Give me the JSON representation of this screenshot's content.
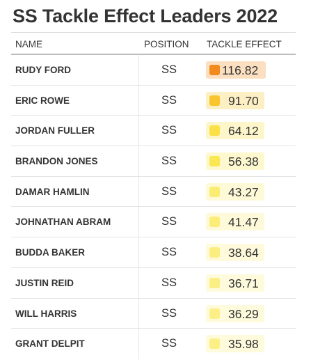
{
  "title": "SS Tackle Effect Leaders 2022",
  "headers": {
    "name": "NAME",
    "position": "POSITION",
    "tackle_effect": "TACKLE EFFECT"
  },
  "colors": {
    "scale_high": "#f28b1e",
    "scale_mid": "#f9c02a",
    "scale_low": "#fbe44a",
    "scale_min": "#fbef86"
  },
  "rows": [
    {
      "name": "RUDY FORD",
      "position": "SS",
      "tackle_effect": "116.82"
    },
    {
      "name": "ERIC ROWE",
      "position": "SS",
      "tackle_effect": "91.70"
    },
    {
      "name": "JORDAN FULLER",
      "position": "SS",
      "tackle_effect": "64.12"
    },
    {
      "name": "BRANDON JONES",
      "position": "SS",
      "tackle_effect": "56.38"
    },
    {
      "name": "DAMAR HAMLIN",
      "position": "SS",
      "tackle_effect": "43.27"
    },
    {
      "name": "JOHNATHAN ABRAM",
      "position": "SS",
      "tackle_effect": "41.47"
    },
    {
      "name": "BUDDA BAKER",
      "position": "SS",
      "tackle_effect": "38.64"
    },
    {
      "name": "JUSTIN REID",
      "position": "SS",
      "tackle_effect": "36.71"
    },
    {
      "name": "WILL HARRIS",
      "position": "SS",
      "tackle_effect": "36.29"
    },
    {
      "name": "GRANT DELPIT",
      "position": "SS",
      "tackle_effect": "35.98"
    }
  ],
  "chart_data": {
    "type": "table",
    "title": "SS Tackle Effect Leaders 2022",
    "columns": [
      "NAME",
      "POSITION",
      "TACKLE EFFECT"
    ],
    "rows": [
      [
        "RUDY FORD",
        "SS",
        116.82
      ],
      [
        "ERIC ROWE",
        "SS",
        91.7
      ],
      [
        "JORDAN FULLER",
        "SS",
        64.12
      ],
      [
        "BRANDON JONES",
        "SS",
        56.38
      ],
      [
        "DAMAR HAMLIN",
        "SS",
        43.27
      ],
      [
        "JOHNATHAN ABRAM",
        "SS",
        41.47
      ],
      [
        "BUDDA BAKER",
        "SS",
        38.64
      ],
      [
        "JUSTIN REID",
        "SS",
        36.71
      ],
      [
        "WILL HARRIS",
        "SS",
        36.29
      ],
      [
        "GRANT DELPIT",
        "SS",
        35.98
      ]
    ]
  }
}
